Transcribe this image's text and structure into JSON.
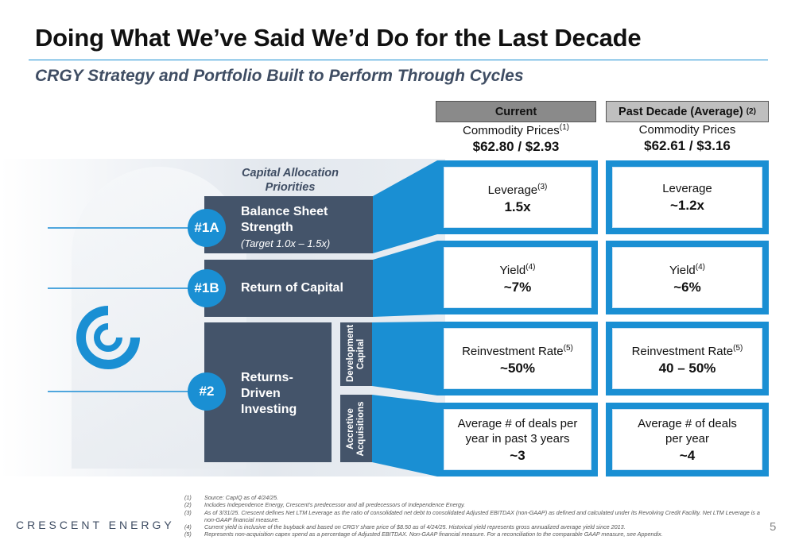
{
  "header": {
    "title": "Doing What We’ve Said We’d Do for the Last Decade",
    "subtitle": "CRGY Strategy and Portfolio Built to Perform Through Cycles"
  },
  "columns": {
    "current": {
      "label": "Current",
      "prices_label": "Commodity Prices",
      "prices_ref": "(1)",
      "prices_value": "$62.80 / $2.93"
    },
    "past": {
      "label": "Past Decade (Average)",
      "label_ref": "(2)",
      "prices_label": "Commodity Prices",
      "prices_value": "$62.61 / $3.16"
    }
  },
  "priorities": {
    "caption": "Capital Allocation Priorities",
    "p1a": {
      "badge": "#1A",
      "title": "Balance Sheet Strength",
      "sub": "(Target 1.0x – 1.5x)"
    },
    "p1b": {
      "badge": "#1B",
      "title": "Return of Capital"
    },
    "p2": {
      "badge": "#2",
      "title": "Returns-Driven Investing"
    },
    "sub_dev": "Development Capital",
    "sub_acq": "Accretive Acquisitions"
  },
  "metrics": {
    "current": [
      {
        "label": "Leverage",
        "ref": "(3)",
        "value": "1.5x"
      },
      {
        "label": "Yield",
        "ref": "(4)",
        "value": "~7%"
      },
      {
        "label": "Reinvestment Rate",
        "ref": "(5)",
        "value": "~50%"
      },
      {
        "label": "Average # of deals per year in past 3 years",
        "ref": "",
        "value": "~3"
      }
    ],
    "past": [
      {
        "label": "Leverage",
        "ref": "",
        "value": "~1.2x"
      },
      {
        "label": "Yield",
        "ref": "(4)",
        "value": "~6%"
      },
      {
        "label": "Reinvestment Rate",
        "ref": "(5)",
        "value": "40 – 50%"
      },
      {
        "label": "Average # of deals per year",
        "ref": "",
        "value": "~4"
      }
    ]
  },
  "footer": {
    "brand": "CRESCENT ENERGY",
    "page": "5",
    "notes": [
      {
        "n": "(1)",
        "t": "Source: CapIQ as of 4/24/25."
      },
      {
        "n": "(2)",
        "t": "Includes Independence Energy, Crescent’s predecessor and all predecessors of Independence Energy."
      },
      {
        "n": "(3)",
        "t": "As of 3/31/25. Crescent defines Net LTM Leverage as the ratio of consolidated net debt to consolidated Adjusted EBITDAX (non-GAAP) as defined and calculated under its Revolving Credit Facility. Net LTM Leverage is a non-GAAP financial measure."
      },
      {
        "n": "(4)",
        "t": "Current yield is inclusive of the buyback and based on CRGY share price of $8.50 as of 4/24/25. Historical yield represents gross annualized average yield since 2013."
      },
      {
        "n": "(5)",
        "t": "Represents non-acquisition capex spend as a percentage of Adjusted EBITDAX. Non-GAAP financial measure. For a reconciliation to the comparable GAAP measure, see Appendix."
      }
    ]
  },
  "colors": {
    "accent": "#1a8fd3",
    "navy": "#44546a"
  },
  "icons": {
    "logo": "crescent-logo-icon"
  }
}
